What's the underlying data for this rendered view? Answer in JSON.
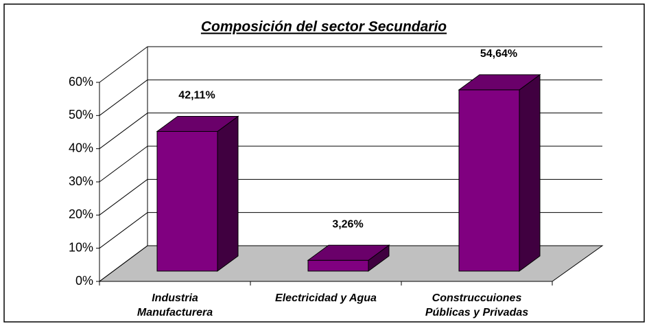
{
  "chart_data": {
    "type": "bar3d",
    "title": "Composición del sector Secundario",
    "categories": [
      [
        "Industria",
        "Manufacturera"
      ],
      [
        "Electricidad y Agua"
      ],
      [
        "Construccuiones",
        "Públicas y Privadas"
      ]
    ],
    "values": [
      42.11,
      3.26,
      54.64
    ],
    "value_labels": [
      "42,11%",
      "3,26%",
      "54,64%"
    ],
    "color": "#800080",
    "ylim": [
      0,
      60
    ],
    "yticks": [
      {
        "value": 0,
        "label": "0%"
      },
      {
        "value": 10,
        "label": "10%"
      },
      {
        "value": 20,
        "label": "20%"
      },
      {
        "value": 30,
        "label": "30%"
      },
      {
        "value": 40,
        "label": "40%"
      },
      {
        "value": 50,
        "label": "50%"
      },
      {
        "value": 60,
        "label": "60%"
      }
    ],
    "grid": true
  }
}
